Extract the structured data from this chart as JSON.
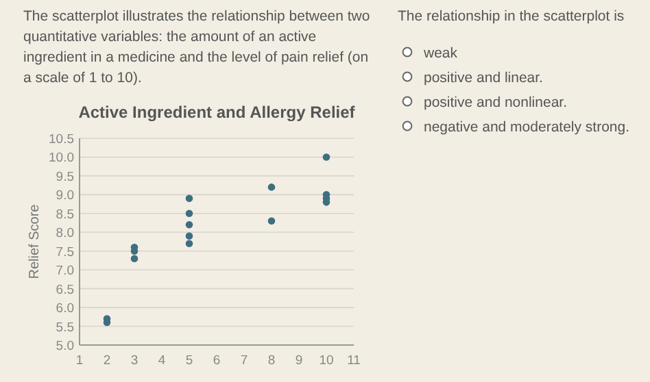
{
  "chart_data": {
    "type": "scatter",
    "title": "Active Ingredient and Allergy Relief",
    "ylabel": "Relief Score",
    "annotations": [
      "The scatterplot illustrates the relationship between two quantitative variables: the amount of an active ingredient in a medicine and the level of pain relief (on a scale of 1 to 10).",
      "The relationship in the scatterplot is",
      "weak",
      "positive and linear.",
      "positive and nonlinear.",
      "negative and moderately strong."
    ],
    "series": [
      {
        "color": "#3e6f80",
        "x": [
          2,
          2,
          3,
          3,
          3,
          5,
          5,
          5,
          5,
          5,
          8,
          8,
          10,
          10,
          10,
          10
        ],
        "values": [
          5.6,
          5.7,
          7.3,
          7.5,
          7.6,
          7.7,
          7.9,
          8.2,
          8.5,
          8.9,
          8.3,
          9.2,
          8.8,
          8.9,
          9.0,
          10.0
        ]
      }
    ],
    "xlim": [
      1,
      11
    ],
    "xticks": [
      1,
      2,
      3,
      4,
      5,
      6,
      7,
      8,
      9,
      10,
      11
    ],
    "ylim": [
      5,
      10.5
    ],
    "yticks": [
      {
        "value": 5,
        "label": "5.0"
      },
      {
        "value": 5.5,
        "label": "5.5"
      },
      {
        "value": 6,
        "label": "6.0"
      },
      {
        "value": 6.5,
        "label": "6.5"
      },
      {
        "value": 7,
        "label": "7.0"
      },
      {
        "value": 7.5,
        "label": "7.5"
      },
      {
        "value": 8,
        "label": "8.0"
      },
      {
        "value": 8.5,
        "label": "8.5"
      },
      {
        "value": 9,
        "label": "9.0"
      },
      {
        "value": 9.5,
        "label": "9.5"
      },
      {
        "value": 10,
        "label": "10.0"
      },
      {
        "value": 10.5,
        "label": "10.5"
      }
    ],
    "grid": "y",
    "marker": "circle"
  }
}
